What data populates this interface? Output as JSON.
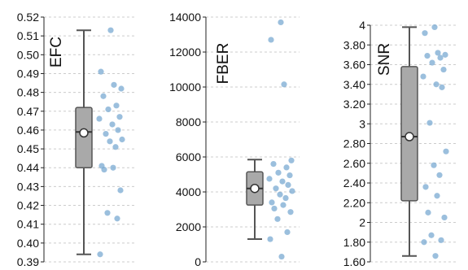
{
  "colors": {
    "box_fill": "#a9a9a9",
    "box_stroke": "#555555",
    "point": "#7aa9d2",
    "grid": "#cccccc"
  },
  "chart_data": [
    {
      "type": "box",
      "ylabel": "EFC",
      "ylim": [
        0.39,
        0.52
      ],
      "yticks": [
        0.39,
        0.4,
        0.41,
        0.42,
        0.43,
        0.44,
        0.45,
        0.46,
        0.47,
        0.48,
        0.49,
        0.5,
        0.51,
        0.52
      ],
      "tick_labels": [
        "0.39",
        "0.40",
        "0.41",
        "0.42",
        "0.43",
        "0.44",
        "0.45",
        "0.46",
        "0.47",
        "0.48",
        "0.49",
        "0.50",
        "0.51",
        "0.52"
      ],
      "grid": true,
      "box": {
        "whisker_low": 0.394,
        "q1": 0.44,
        "median": 0.459,
        "q3": 0.472,
        "whisker_high": 0.513,
        "mean": 0.4585
      },
      "points": [
        0.513,
        0.491,
        0.484,
        0.482,
        0.478,
        0.473,
        0.471,
        0.467,
        0.466,
        0.463,
        0.46,
        0.458,
        0.455,
        0.454,
        0.451,
        0.441,
        0.44,
        0.439,
        0.428,
        0.416,
        0.413,
        0.394
      ]
    },
    {
      "type": "box",
      "ylabel": "FBER",
      "ylim": [
        0,
        14000
      ],
      "yticks": [
        0,
        2000,
        4000,
        6000,
        8000,
        10000,
        12000,
        14000
      ],
      "tick_labels": [
        "0",
        "2000",
        "4000",
        "6000",
        "8000",
        "10000",
        "12000",
        "14000"
      ],
      "grid": true,
      "box": {
        "whisker_low": 1300,
        "q1": 3250,
        "median": 4200,
        "q3": 5150,
        "whisker_high": 5850,
        "mean": 4200
      },
      "points": [
        13700,
        12700,
        10150,
        5800,
        5600,
        5400,
        5100,
        4950,
        4750,
        4600,
        4400,
        4200,
        4050,
        3850,
        3650,
        3400,
        3250,
        3050,
        2850,
        2450,
        1700,
        1300,
        300
      ]
    },
    {
      "type": "box",
      "ylabel": "SNR",
      "ylim": [
        1.6,
        4.0
      ],
      "yticks": [
        1.6,
        1.8,
        2.0,
        2.2,
        2.4,
        2.6,
        2.8,
        3.0,
        3.2,
        3.4,
        3.6,
        3.8,
        4.0
      ],
      "tick_labels": [
        "1.60",
        "1.80",
        "2",
        "2.20",
        "2.40",
        "2.60",
        "2.80",
        "3",
        "3.20",
        "3.40",
        "3.60",
        "3.80",
        "4"
      ],
      "grid": true,
      "box": {
        "whisker_low": 1.66,
        "q1": 2.22,
        "median": 2.87,
        "q3": 3.58,
        "whisker_high": 3.98,
        "mean": 2.87
      },
      "points": [
        3.98,
        3.92,
        3.72,
        3.7,
        3.69,
        3.67,
        3.62,
        3.55,
        3.48,
        3.4,
        3.37,
        3.01,
        2.72,
        2.58,
        2.48,
        2.36,
        2.27,
        2.1,
        2.05,
        1.87,
        1.82,
        1.8,
        1.66
      ]
    }
  ]
}
